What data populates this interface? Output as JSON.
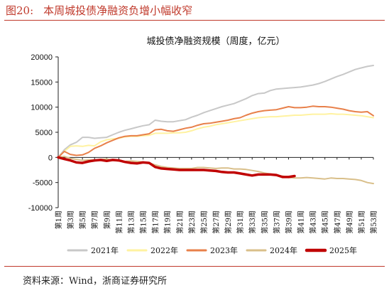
{
  "figure": {
    "number": "图20:",
    "caption": "本周城投债净融资负增小幅收窄"
  },
  "source": "资料来源：Wind，浙商证券研究所",
  "colors": {
    "accent": "#c0392b",
    "s2021": "#c8c8c8",
    "s2022": "#fff2a0",
    "s2023": "#e8804a",
    "s2024": "#d9bf8a",
    "s2025": "#c00000"
  },
  "chart_data": {
    "type": "line",
    "title": "城投债净融资规模（周度，亿元）",
    "xlabel": "",
    "ylabel": "",
    "ylim": [
      -10000,
      20000
    ],
    "yticks": [
      -10000,
      -5000,
      0,
      5000,
      10000,
      15000,
      20000
    ],
    "ytick_labels": [
      "-10000",
      "-5000",
      "0",
      "5000",
      "10000",
      "15000",
      "20000"
    ],
    "x_ticks_labeled": [
      "第1周",
      "第3周",
      "第5周",
      "第7周",
      "第9周",
      "第11周",
      "第13周",
      "第15周",
      "第17周",
      "第19周",
      "第21周",
      "第23周",
      "第25周",
      "第27周",
      "第29周",
      "第31周",
      "第33周",
      "第35周",
      "第37周",
      "第39周",
      "第41周",
      "第43周",
      "第45周",
      "第47周",
      "第49周",
      "第51周",
      "第53周"
    ],
    "weeks": 53,
    "grid": false,
    "legend_position": "bottom",
    "series": [
      {
        "name": "2021年",
        "color_key": "s2021",
        "width": 2,
        "values": [
          0,
          1500,
          2500,
          3000,
          4000,
          4000,
          3800,
          3900,
          4000,
          4500,
          5000,
          5400,
          5700,
          6000,
          6300,
          6500,
          7400,
          7200,
          7100,
          7100,
          7300,
          7500,
          8000,
          8400,
          8900,
          9300,
          9700,
          10100,
          10400,
          10700,
          11200,
          11700,
          12300,
          12700,
          12800,
          13300,
          13600,
          13700,
          13800,
          13900,
          14000,
          14200,
          14400,
          14700,
          15100,
          15600,
          16100,
          16500,
          17000,
          17500,
          17800,
          18100,
          18300
        ]
      },
      {
        "name": "2022年",
        "color_key": "s2022",
        "width": 2,
        "values": [
          0,
          1200,
          2200,
          2300,
          2200,
          2400,
          2300,
          3100,
          3500,
          3700,
          3800,
          4100,
          4200,
          4200,
          4300,
          4400,
          4800,
          4800,
          4800,
          4900,
          4900,
          5000,
          5300,
          5700,
          6000,
          6200,
          6500,
          6700,
          6900,
          7100,
          7300,
          7500,
          7700,
          7900,
          8000,
          8100,
          8100,
          8200,
          8300,
          8400,
          8400,
          8500,
          8600,
          8600,
          8600,
          8700,
          8600,
          8600,
          8500,
          8400,
          8300,
          8100,
          7900
        ]
      },
      {
        "name": "2023年",
        "color_key": "s2023",
        "width": 2,
        "values": [
          0,
          1200,
          600,
          400,
          500,
          1000,
          1800,
          2300,
          2900,
          3400,
          3900,
          4200,
          4300,
          4300,
          4500,
          4700,
          5500,
          5600,
          5300,
          5200,
          5500,
          5800,
          6000,
          6400,
          6700,
          6800,
          7000,
          7200,
          7400,
          7700,
          7900,
          8400,
          8800,
          9100,
          9300,
          9400,
          9500,
          9800,
          10100,
          9900,
          9900,
          10000,
          10200,
          10100,
          10100,
          10000,
          9800,
          9600,
          9300,
          9100,
          9000,
          9100,
          8300
        ]
      },
      {
        "name": "2024年",
        "color_key": "s2024",
        "width": 2,
        "values": [
          0,
          200,
          -200,
          -400,
          -600,
          -500,
          -500,
          -400,
          -300,
          -600,
          -700,
          -800,
          -700,
          -800,
          -900,
          -1100,
          -1500,
          -1800,
          -2000,
          -2100,
          -2200,
          -2200,
          -2200,
          -2000,
          -2000,
          -2100,
          -2200,
          -2100,
          -2100,
          -2300,
          -2300,
          -2400,
          -2600,
          -2800,
          -3100,
          -3300,
          -3600,
          -3700,
          -4000,
          -4100,
          -4100,
          -4000,
          -4100,
          -4200,
          -4300,
          -4100,
          -4200,
          -4200,
          -4300,
          -4400,
          -4600,
          -5000,
          -5200
        ]
      },
      {
        "name": "2025年",
        "color_key": "s2025",
        "width": 3.5,
        "values": [
          0,
          -300,
          -600,
          -1000,
          -1100,
          -800,
          -600,
          -500,
          -700,
          -500,
          -600,
          -900,
          -1100,
          -1200,
          -1000,
          -1100,
          -1900,
          -2200,
          -2300,
          -2400,
          -2500,
          -2500,
          -2500,
          -2500,
          -2500,
          -2600,
          -2700,
          -2900,
          -3000,
          -3000,
          -3200,
          -3400,
          -3600,
          -3400,
          -3400,
          -3400,
          -3500,
          -3900,
          -3900,
          -3700
        ]
      }
    ]
  }
}
